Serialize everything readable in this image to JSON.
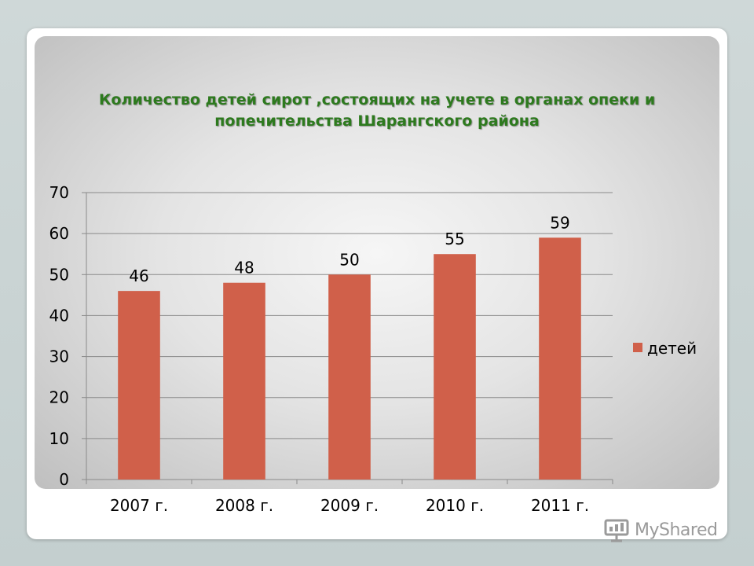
{
  "chart_data": {
    "type": "bar",
    "title": "Количество детей сирот ,состоящих на учете в органах опеки и попечительства Шарангского района",
    "title_lines": [
      "Количество детей сирот ,состоящих на учете в органах опеки и",
      "попечительства Шарангского района"
    ],
    "categories": [
      "2007 г.",
      "2008 г.",
      "2009 г.",
      "2010 г.",
      "2011 г."
    ],
    "series": [
      {
        "name": "детей",
        "values": [
          46,
          48,
          50,
          55,
          59
        ],
        "color": "#d0604a"
      }
    ],
    "ylim": [
      0,
      70
    ],
    "yticks": [
      0,
      10,
      20,
      30,
      40,
      50,
      60,
      70
    ],
    "grid": true,
    "legend": "right",
    "data_labels": true
  },
  "watermark": {
    "text": "MyShared",
    "icon": "presentation-board-icon"
  }
}
